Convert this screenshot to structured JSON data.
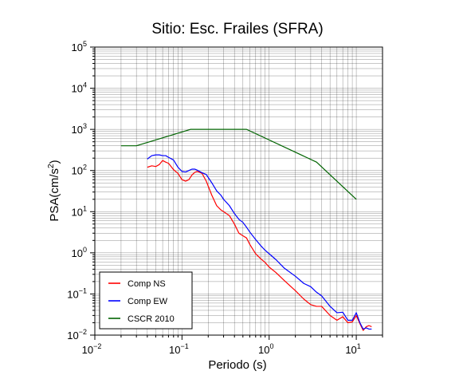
{
  "chart_data": {
    "type": "line",
    "title": "Sitio: Esc. Frailes (SFRA)",
    "xlabel": "Periodo (s)",
    "ylabel_main": "PSA(cm/s",
    "ylabel_sup": "2",
    "ylabel_end": ")",
    "xscale": "log",
    "yscale": "log",
    "xlim": [
      0.01,
      20
    ],
    "ylim": [
      0.01,
      100000
    ],
    "grid": true,
    "legend_position": "bottom-left",
    "x_tick_labels": [
      {
        "value": 0.01,
        "base": "10",
        "exp": "−2"
      },
      {
        "value": 0.1,
        "base": "10",
        "exp": "−1"
      },
      {
        "value": 1,
        "base": "10",
        "exp": "0"
      },
      {
        "value": 10,
        "base": "10",
        "exp": "1"
      }
    ],
    "y_tick_labels": [
      {
        "value": 0.01,
        "base": "10",
        "exp": "−2"
      },
      {
        "value": 0.1,
        "base": "10",
        "exp": "−1"
      },
      {
        "value": 1,
        "base": "10",
        "exp": "0"
      },
      {
        "value": 10,
        "base": "10",
        "exp": "1"
      },
      {
        "value": 100,
        "base": "10",
        "exp": "2"
      },
      {
        "value": 1000,
        "base": "10",
        "exp": "3"
      },
      {
        "value": 10000,
        "base": "10",
        "exp": "4"
      },
      {
        "value": 100000,
        "base": "10",
        "exp": "5"
      }
    ],
    "series": [
      {
        "name": "Comp NS",
        "color": "#ff0000",
        "x": [
          0.04,
          0.045,
          0.05,
          0.055,
          0.06,
          0.065,
          0.07,
          0.08,
          0.09,
          0.1,
          0.11,
          0.12,
          0.13,
          0.14,
          0.15,
          0.17,
          0.19,
          0.22,
          0.25,
          0.28,
          0.3,
          0.35,
          0.4,
          0.45,
          0.5,
          0.55,
          0.6,
          0.7,
          0.8,
          0.9,
          1.0,
          1.2,
          1.5,
          2.0,
          2.5,
          3.0,
          3.5,
          4.0,
          5.0,
          6.0,
          7.0,
          8.0,
          9.0,
          10.0,
          11.0,
          12.0,
          13.0,
          14.0,
          15.0
        ],
        "y": [
          120,
          130,
          125,
          140,
          175,
          160,
          150,
          105,
          85,
          60,
          55,
          60,
          78,
          90,
          95,
          85,
          55,
          25,
          14,
          11,
          10,
          8,
          5,
          3,
          2.6,
          2.3,
          1.6,
          0.95,
          0.72,
          0.58,
          0.45,
          0.33,
          0.21,
          0.12,
          0.075,
          0.055,
          0.05,
          0.05,
          0.03,
          0.023,
          0.028,
          0.02,
          0.021,
          0.03,
          0.019,
          0.013,
          0.016,
          0.017,
          0.016
        ]
      },
      {
        "name": "Comp EW",
        "color": "#0000ff",
        "x": [
          0.04,
          0.045,
          0.05,
          0.055,
          0.06,
          0.065,
          0.07,
          0.08,
          0.09,
          0.1,
          0.11,
          0.12,
          0.13,
          0.14,
          0.15,
          0.17,
          0.19,
          0.22,
          0.25,
          0.28,
          0.3,
          0.35,
          0.4,
          0.45,
          0.5,
          0.55,
          0.6,
          0.7,
          0.8,
          0.9,
          1.0,
          1.2,
          1.5,
          2.0,
          2.5,
          3.0,
          3.5,
          4.0,
          5.0,
          6.0,
          7.0,
          8.0,
          9.0,
          10.0,
          11.0,
          12.0,
          13.0,
          14.0,
          15.0
        ],
        "y": [
          190,
          230,
          240,
          240,
          230,
          230,
          210,
          180,
          120,
          95,
          92,
          100,
          108,
          108,
          102,
          88,
          80,
          50,
          32,
          25,
          20,
          14,
          9,
          6.5,
          5.5,
          4.2,
          3.2,
          2.1,
          1.5,
          1.15,
          0.95,
          0.68,
          0.42,
          0.27,
          0.18,
          0.15,
          0.11,
          0.09,
          0.05,
          0.035,
          0.036,
          0.023,
          0.023,
          0.035,
          0.02,
          0.014,
          0.015,
          0.014,
          0.014
        ]
      },
      {
        "name": "CSCR 2010",
        "color": "#006400",
        "x": [
          0.02,
          0.03,
          0.125,
          0.55,
          3.5,
          10.0
        ],
        "y": [
          400,
          400,
          1000,
          1000,
          160,
          20
        ]
      }
    ]
  }
}
